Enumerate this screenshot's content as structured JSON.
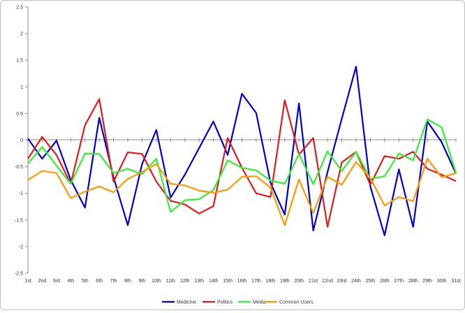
{
  "chart_data": {
    "type": "line",
    "x": [
      "1st",
      "2nd",
      "3rd",
      "4th",
      "5th",
      "6th",
      "7th",
      "8th",
      "9th",
      "10th",
      "11th",
      "12th",
      "13th",
      "14th",
      "15th",
      "16th",
      "17th",
      "18th",
      "19th",
      "20th",
      "21st",
      "22nd",
      "23rd",
      "24th",
      "25th",
      "26th",
      "27th",
      "28th",
      "29th",
      "30th",
      "31st"
    ],
    "y_ticks": [
      "2.5",
      "2",
      "1.5",
      "1",
      "0.5",
      "0",
      "-0.5",
      "-1",
      "-1.5",
      "-2",
      "-2.5"
    ],
    "ylim": [
      -2.5,
      2.5
    ],
    "grid": false,
    "legend_position": "bottom",
    "series": [
      {
        "name": "Medicine",
        "color": "#0000cc",
        "values": [
          0.03,
          -0.35,
          -0.01,
          -0.75,
          -1.27,
          0.42,
          -0.7,
          -1.6,
          -0.45,
          0.19,
          -1.08,
          -0.65,
          -0.15,
          0.35,
          -0.28,
          0.87,
          0.51,
          -0.8,
          -1.4,
          0.69,
          -1.7,
          -0.6,
          0.4,
          1.38,
          -0.87,
          -1.79,
          -0.55,
          -1.63,
          0.35,
          -0.04,
          -0.63
        ]
      },
      {
        "name": "Politics",
        "color": "#e31a1c",
        "values": [
          -0.35,
          0.06,
          -0.28,
          -0.82,
          0.28,
          0.77,
          -0.78,
          -0.23,
          -0.26,
          -0.78,
          -1.14,
          -1.21,
          -1.38,
          -1.24,
          0.04,
          -0.52,
          -1.0,
          -1.07,
          0.75,
          -0.27,
          0.04,
          -1.63,
          -0.42,
          -0.22,
          -0.84,
          -0.3,
          -0.35,
          -0.22,
          -0.54,
          -0.65,
          -0.77
        ]
      },
      {
        "name": "Media",
        "color": "#33ee33",
        "values": [
          -0.44,
          -0.13,
          -0.48,
          -0.82,
          -0.25,
          -0.26,
          -0.62,
          -0.54,
          -0.64,
          -0.35,
          -1.35,
          -1.13,
          -1.11,
          -0.94,
          -0.38,
          -0.52,
          -0.57,
          -0.76,
          -0.82,
          -0.26,
          -0.83,
          -0.21,
          -0.58,
          -0.22,
          -0.73,
          -0.68,
          -0.25,
          -0.38,
          0.39,
          0.24,
          -0.62
        ]
      },
      {
        "name": "Common Users",
        "color": "#ff9900",
        "values": [
          -0.75,
          -0.58,
          -0.62,
          -1.09,
          -0.97,
          -0.87,
          -0.98,
          -0.73,
          -0.6,
          -0.45,
          -0.82,
          -0.85,
          -0.95,
          -0.99,
          -0.93,
          -0.69,
          -0.68,
          -0.89,
          -1.6,
          -0.74,
          -1.37,
          -0.69,
          -0.84,
          -0.41,
          -0.71,
          -1.23,
          -1.07,
          -1.15,
          -0.35,
          -0.7,
          -0.62
        ]
      }
    ]
  }
}
